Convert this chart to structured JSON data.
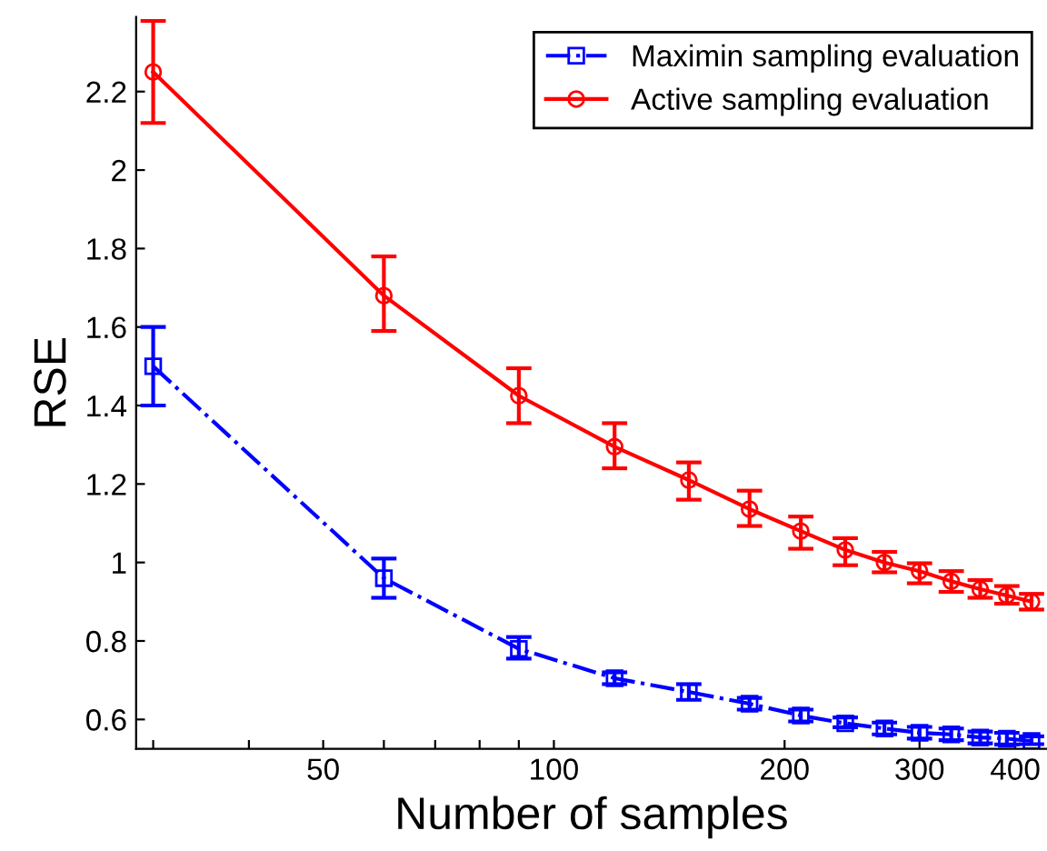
{
  "chart_data": {
    "type": "line",
    "xlabel": "Number of samples",
    "ylabel": "RSE",
    "log": "x",
    "grid": false,
    "legend": "top right",
    "x": [
      30,
      60,
      90,
      120,
      150,
      180,
      210,
      240,
      270,
      300,
      330,
      360,
      390,
      420
    ],
    "xlim": [
      28.5,
      440
    ],
    "xticks": [
      {
        "value": 30,
        "label": null
      },
      {
        "value": 40,
        "label": null
      },
      50,
      {
        "value": 60,
        "label": null
      },
      {
        "value": 70,
        "label": null
      },
      {
        "value": 80,
        "label": null
      },
      {
        "value": 90,
        "label": null
      },
      100,
      200,
      300,
      400
    ],
    "ylim": [
      0.525,
      2.39
    ],
    "yticks": [
      0.6,
      0.8,
      1,
      1.2,
      1.4,
      1.6,
      1.8,
      2,
      2.2
    ],
    "series": [
      {
        "name": "Maximin sampling evaluation",
        "color": "#0000ff",
        "marker": "square",
        "line_style": "dashdot",
        "values": [
          1.5,
          0.96,
          0.78,
          0.705,
          0.67,
          0.64,
          0.61,
          0.59,
          0.577,
          0.566,
          0.562,
          0.554,
          0.551,
          0.545
        ],
        "errors": [
          [
            1.4,
            1.6
          ],
          [
            0.91,
            1.01
          ],
          [
            0.755,
            0.81
          ],
          [
            0.69,
            0.72
          ],
          [
            0.65,
            0.69
          ],
          [
            0.625,
            0.655
          ],
          [
            0.595,
            0.625
          ],
          [
            0.58,
            0.605
          ],
          [
            0.562,
            0.592
          ],
          [
            0.551,
            0.581
          ],
          [
            0.547,
            0.577
          ],
          [
            0.539,
            0.569
          ],
          [
            0.536,
            0.566
          ],
          [
            0.537,
            0.557
          ]
        ]
      },
      {
        "name": "Active sampling evaluation",
        "color": "#ff0000",
        "marker": "circle",
        "line_style": "solid",
        "values": [
          2.25,
          1.68,
          1.425,
          1.295,
          1.21,
          1.136,
          1.08,
          1.032,
          1.0,
          0.978,
          0.952,
          0.932,
          0.916,
          0.9
        ],
        "errors": [
          [
            2.12,
            2.38
          ],
          [
            1.59,
            1.78
          ],
          [
            1.355,
            1.495
          ],
          [
            1.24,
            1.355
          ],
          [
            1.16,
            1.255
          ],
          [
            1.093,
            1.183
          ],
          [
            1.035,
            1.117
          ],
          [
            0.993,
            1.062
          ],
          [
            0.975,
            1.027
          ],
          [
            0.947,
            0.998
          ],
          [
            0.925,
            0.978
          ],
          [
            0.91,
            0.955
          ],
          [
            0.895,
            0.94
          ],
          [
            0.88,
            0.92
          ]
        ]
      }
    ]
  }
}
